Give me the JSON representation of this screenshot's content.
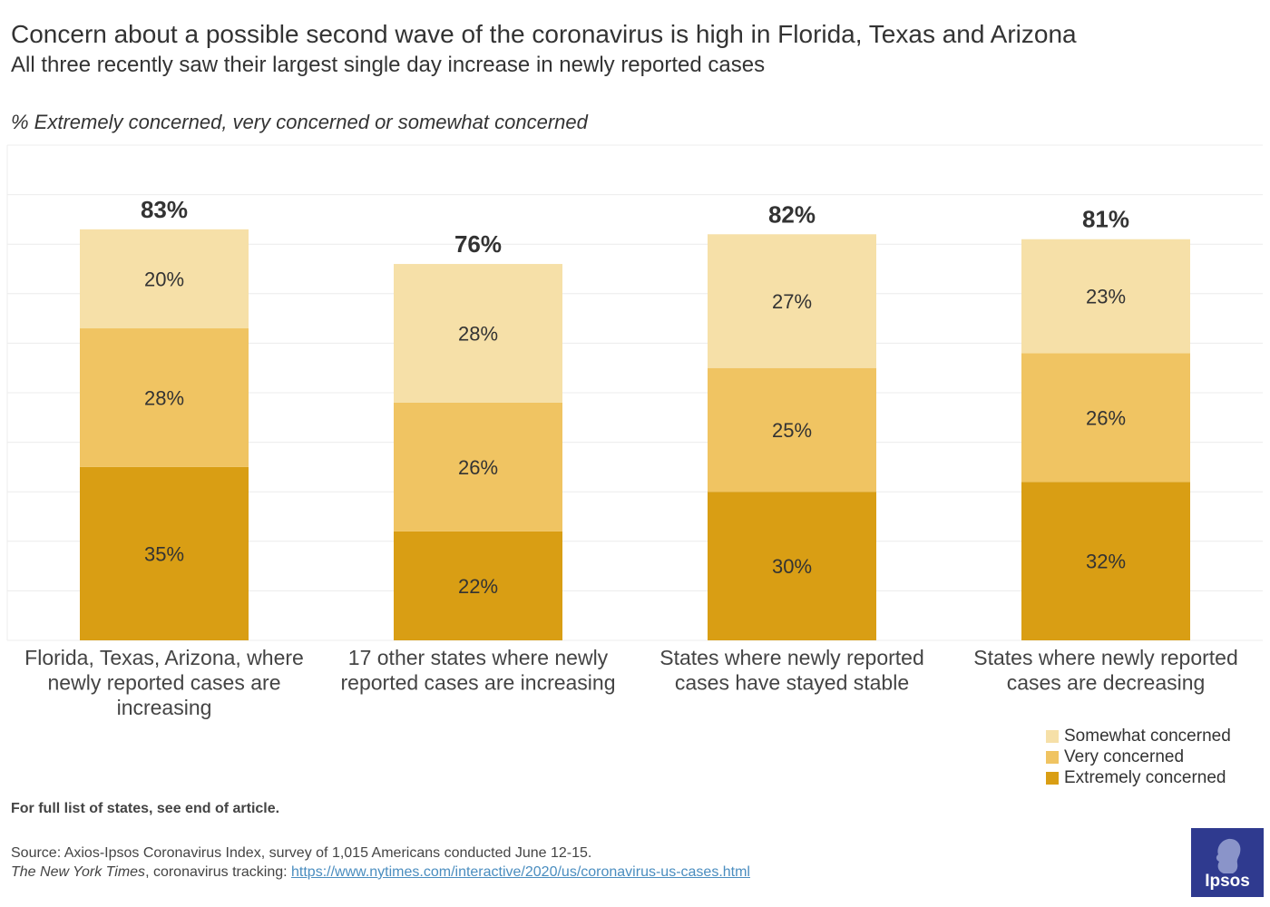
{
  "header": {
    "title": "Concern about a possible second wave of the coronavirus is high in Florida, Texas and Arizona",
    "subtitle": "All three recently saw their largest single day increase in newly reported cases",
    "axis_note": "% Extremely concerned, very concerned or somewhat concerned"
  },
  "chart_data": {
    "type": "bar",
    "stacked": true,
    "title": "Concern about a possible second wave of the coronavirus is high in Florida, Texas and Arizona",
    "ylabel": "% Extremely concerned, very concerned or somewhat concerned",
    "ylim": [
      0,
      100
    ],
    "grid": true,
    "legend_position": "bottom-right",
    "categories": [
      [
        "Florida, Texas, Arizona, where",
        "newly reported cases are",
        "increasing"
      ],
      [
        "17 other states where newly",
        "reported cases are increasing"
      ],
      [
        "States where newly reported",
        "cases have stayed stable"
      ],
      [
        "States where newly reported",
        "cases are decreasing"
      ]
    ],
    "series": [
      {
        "name": "Extremely concerned",
        "color": "#d99e14",
        "values": [
          35,
          22,
          30,
          32
        ],
        "labels": [
          "35%",
          "22%",
          "30%",
          "32%"
        ]
      },
      {
        "name": "Very concerned",
        "color": "#f0c462",
        "values": [
          28,
          26,
          25,
          26
        ],
        "labels": [
          "28%",
          "26%",
          "25%",
          "26%"
        ]
      },
      {
        "name": "Somewhat concerned",
        "color": "#f6e0a8",
        "values": [
          20,
          28,
          27,
          23
        ],
        "labels": [
          "20%",
          "28%",
          "27%",
          "23%"
        ]
      }
    ],
    "totals": [
      83,
      76,
      82,
      81
    ],
    "total_labels": [
      "83%",
      "76%",
      "82%",
      "81%"
    ]
  },
  "legend": {
    "items": [
      {
        "label": "Somewhat concerned",
        "color": "#f6e0a8"
      },
      {
        "label": "Very concerned",
        "color": "#f0c462"
      },
      {
        "label": "Extremely concerned",
        "color": "#d99e14"
      }
    ]
  },
  "footer": {
    "note": "For full list of states, see end of article.",
    "source_line": "Source: Axios-Ipsos Coronavirus Index, survey of 1,015  Americans conducted June 12-15.",
    "nyt_name": "The New York Times",
    "nyt_text": ", coronavirus tracking: ",
    "nyt_url": "https://www.nytimes.com/interactive/2020/us/coronavirus-us-cases.html"
  },
  "logo": {
    "text": "Ipsos",
    "color": "#2f3a8f"
  }
}
